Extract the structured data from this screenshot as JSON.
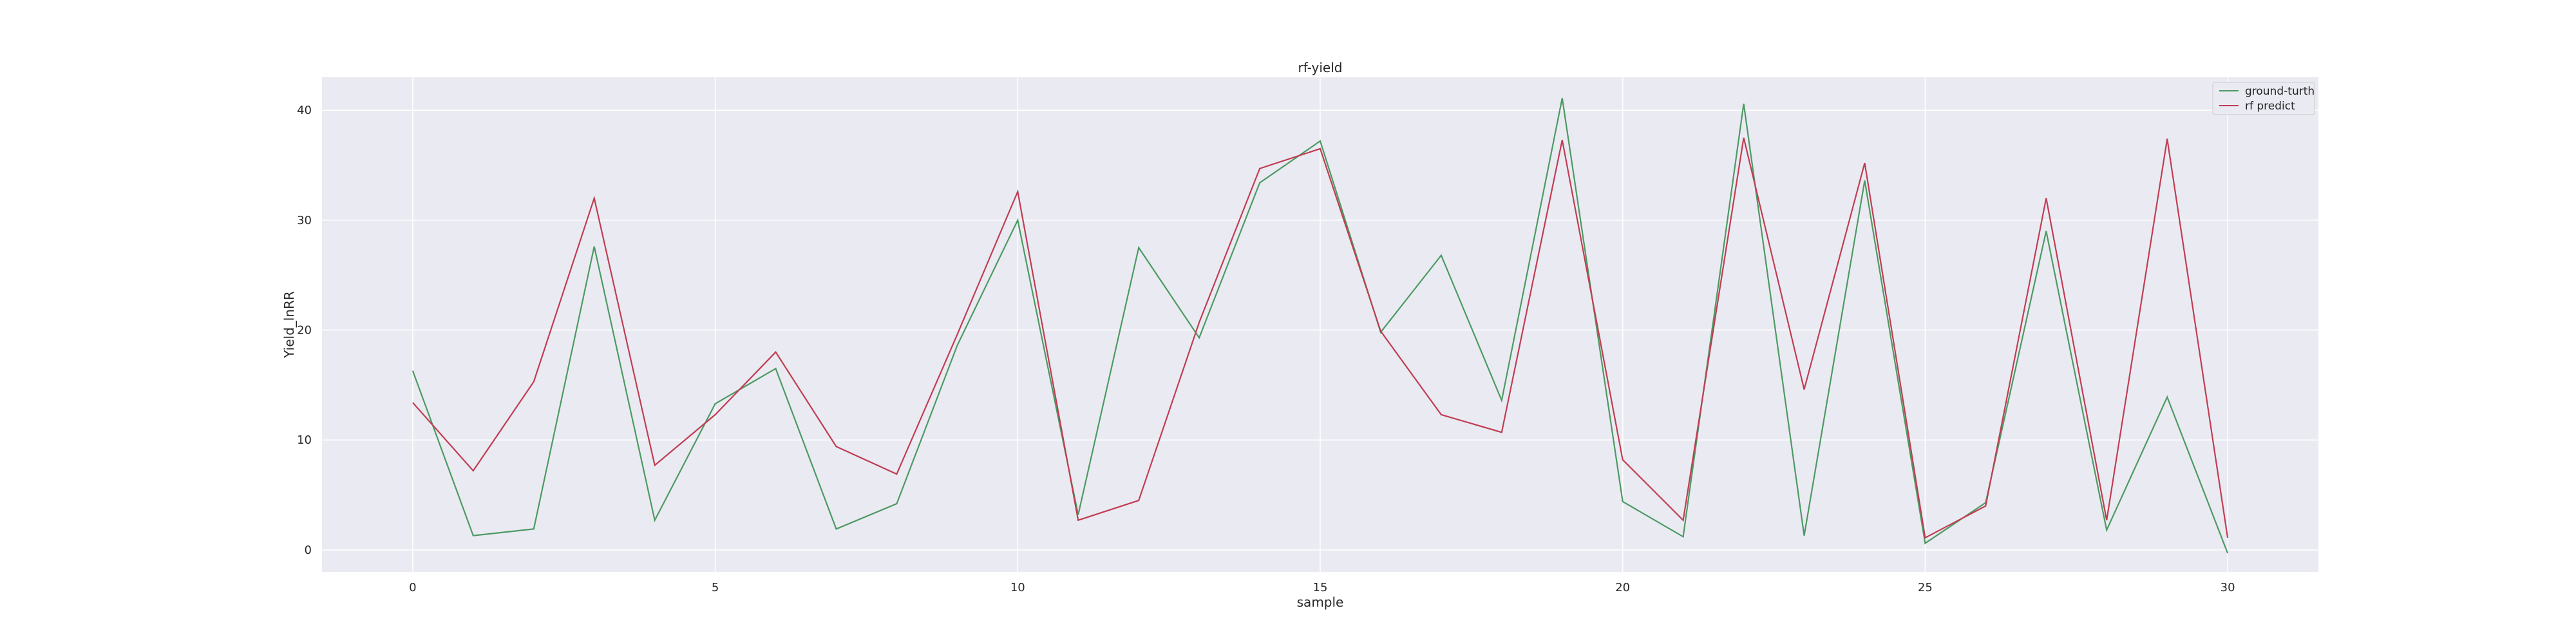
{
  "chart_data": {
    "type": "line",
    "title": "rf-yield",
    "xlabel": "sample",
    "ylabel": "Yield_lnRR",
    "xlim": [
      -1.5,
      31.5
    ],
    "ylim": [
      -2,
      43
    ],
    "xticks": [
      0,
      5,
      10,
      15,
      20,
      25,
      30
    ],
    "yticks": [
      0,
      10,
      20,
      30,
      40
    ],
    "grid": true,
    "legend_position": "top-right",
    "x": [
      0,
      1,
      2,
      3,
      4,
      5,
      6,
      7,
      8,
      9,
      10,
      11,
      12,
      13,
      14,
      15,
      16,
      17,
      18,
      19,
      20,
      21,
      22,
      23,
      24,
      25,
      26,
      27,
      28,
      29,
      30
    ],
    "series": [
      {
        "name": "ground-turth",
        "color": "#4c9a62",
        "values": [
          16.3,
          1.3,
          1.9,
          27.6,
          2.7,
          13.3,
          16.5,
          1.9,
          4.2,
          18.6,
          30.0,
          3.2,
          27.5,
          19.3,
          33.4,
          37.2,
          19.8,
          26.8,
          13.6,
          41.1,
          4.4,
          1.2,
          40.6,
          1.3,
          33.6,
          0.6,
          4.3,
          29.0,
          1.8,
          13.9,
          -0.3
        ]
      },
      {
        "name": "rf predict",
        "color": "#c03d52",
        "values": [
          13.4,
          7.2,
          15.3,
          32.0,
          7.7,
          12.3,
          18.0,
          9.4,
          6.9,
          19.6,
          32.6,
          2.7,
          4.5,
          20.7,
          34.7,
          36.5,
          19.9,
          12.3,
          10.7,
          37.3,
          8.2,
          2.7,
          37.5,
          14.6,
          35.2,
          1.1,
          4.0,
          32.0,
          2.7,
          37.4,
          1.1
        ]
      }
    ]
  }
}
